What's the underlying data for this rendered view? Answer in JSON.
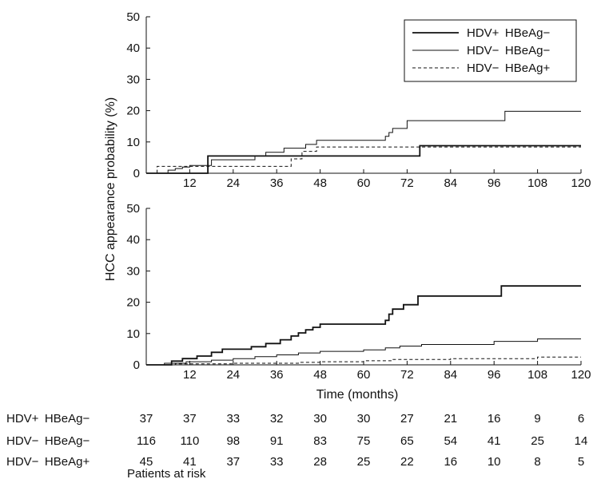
{
  "chart_data": [
    {
      "type": "line",
      "title": "",
      "ylabel": "HCC appearance probability (%)",
      "xlabel": "",
      "xlim": [
        0,
        120
      ],
      "ylim": [
        0,
        50
      ],
      "xticks": [
        0,
        12,
        24,
        36,
        48,
        60,
        72,
        84,
        96,
        108,
        120
      ],
      "yticks": [
        0,
        10,
        20,
        30,
        40,
        50
      ],
      "grid": false,
      "legend": {
        "placement": "top-right",
        "entries": [
          "HDV+ HBeAg−",
          "HDV− HBeAg−",
          "HDV− HBeAg+"
        ]
      },
      "series": [
        {
          "name": "HDV+ HBeAg−",
          "style": "solid-thick",
          "x": [
            0,
            17,
            17,
            41,
            41,
            75.5,
            75.5,
            120
          ],
          "y": [
            0,
            0,
            5.5,
            5.5,
            5.5,
            5.5,
            8.8,
            8.8
          ]
        },
        {
          "name": "HDV− HBeAg−",
          "style": "solid-thin",
          "x": [
            0,
            6,
            6,
            8,
            8,
            10,
            10,
            12,
            12,
            18,
            18,
            30,
            30,
            33,
            33,
            38,
            38,
            44,
            44,
            47,
            47,
            66,
            66,
            67,
            67,
            68,
            68,
            72,
            72,
            99,
            99,
            108,
            108,
            120
          ],
          "y": [
            0,
            0,
            1,
            1,
            1.5,
            1.5,
            2,
            2,
            2.5,
            2.5,
            4.3,
            4.3,
            5.5,
            5.5,
            6.7,
            6.7,
            8,
            8,
            9.2,
            9.2,
            10.5,
            10.5,
            11.8,
            11.8,
            13,
            13,
            14.3,
            14.3,
            16.8,
            16.8,
            19.8,
            19.8,
            19.8,
            19.8
          ]
        },
        {
          "name": "HDV− HBeAg+",
          "style": "dashed",
          "x": [
            0,
            3,
            3,
            40,
            40,
            43,
            43,
            47,
            47,
            120
          ],
          "y": [
            0,
            0,
            2.2,
            2.2,
            4.6,
            4.6,
            7,
            7,
            8.4,
            8.4
          ]
        }
      ]
    },
    {
      "type": "line",
      "title": "",
      "ylabel": "HCC appearance probability (%)",
      "xlabel": "Time (months)",
      "xlim": [
        0,
        120
      ],
      "ylim": [
        0,
        50
      ],
      "xticks": [
        0,
        12,
        24,
        36,
        48,
        60,
        72,
        84,
        96,
        108,
        120
      ],
      "yticks": [
        0,
        10,
        20,
        30,
        40,
        50
      ],
      "grid": false,
      "series": [
        {
          "name": "HDV+ HBeAg−",
          "style": "solid-thick",
          "x": [
            0,
            7,
            7,
            10,
            10,
            14,
            14,
            18,
            18,
            21,
            21,
            29,
            29,
            33,
            33,
            37,
            37,
            40,
            40,
            42,
            42,
            44,
            44,
            46,
            46,
            48,
            48,
            66,
            66,
            67,
            67,
            68,
            68,
            71,
            71,
            75,
            75,
            98,
            98,
            107,
            107,
            120
          ],
          "y": [
            0,
            0,
            1.2,
            1.2,
            2,
            2,
            2.8,
            2.8,
            4,
            4,
            5,
            5,
            5.8,
            5.8,
            6.8,
            6.8,
            8,
            8,
            9.2,
            9.2,
            10.2,
            10.2,
            11.2,
            11.2,
            12,
            12,
            13,
            13,
            14.2,
            14.2,
            16.2,
            16.2,
            17.8,
            17.8,
            19.2,
            19.2,
            22,
            22,
            25.2,
            25.2,
            25.2,
            25.2
          ]
        },
        {
          "name": "HDV− HBeAg−",
          "style": "solid-thin",
          "x": [
            0,
            5,
            5,
            11,
            11,
            18,
            18,
            24,
            24,
            30,
            30,
            36,
            36,
            42,
            42,
            48,
            48,
            60,
            60,
            66,
            66,
            70,
            70,
            76,
            76,
            96,
            96,
            108,
            108,
            120
          ],
          "y": [
            0,
            0,
            0.5,
            0.5,
            1,
            1,
            1.5,
            1.5,
            2,
            2,
            2.6,
            2.6,
            3.2,
            3.2,
            3.8,
            3.8,
            4.3,
            4.3,
            4.8,
            4.8,
            5.4,
            5.4,
            6,
            6,
            6.5,
            6.5,
            7.5,
            7.5,
            8.3,
            8.3
          ]
        },
        {
          "name": "HDV− HBeAg+",
          "style": "dashed",
          "x": [
            0,
            8,
            8,
            24,
            24,
            42,
            42,
            48,
            48,
            60,
            60,
            68,
            68,
            84,
            84,
            108,
            108,
            120
          ],
          "y": [
            0,
            0,
            0.3,
            0.3,
            0.5,
            0.5,
            0.8,
            0.8,
            1,
            1,
            1.3,
            1.3,
            1.7,
            1.7,
            2,
            2,
            2.5,
            2.5
          ]
        }
      ]
    }
  ],
  "risk_table": {
    "x": [
      0,
      12,
      24,
      36,
      48,
      60,
      72,
      84,
      96,
      108,
      120
    ],
    "rows": [
      {
        "label": "HDV+ HBeAg−",
        "values": [
          37,
          37,
          33,
          32,
          30,
          30,
          27,
          21,
          16,
          9,
          6
        ]
      },
      {
        "label": "HDV− HBeAg−",
        "values": [
          116,
          110,
          98,
          91,
          83,
          75,
          65,
          54,
          41,
          25,
          14
        ]
      },
      {
        "label": "HDV− HBeAg+",
        "values": [
          45,
          41,
          37,
          33,
          28,
          25,
          22,
          16,
          10,
          8,
          5
        ]
      }
    ],
    "caption": "Patients at risk"
  }
}
